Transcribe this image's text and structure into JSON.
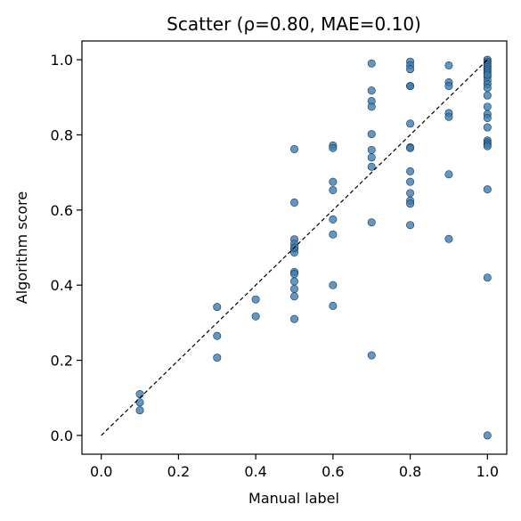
{
  "chart_data": {
    "type": "scatter",
    "title": "Scatter  (ρ=0.80,  MAE=0.10)",
    "xlabel": "Manual label",
    "ylabel": "Algorithm score",
    "xlim": [
      -0.05,
      1.05
    ],
    "ylim": [
      -0.05,
      1.05
    ],
    "xticks": [
      0.0,
      0.2,
      0.4,
      0.6,
      0.8,
      1.0
    ],
    "yticks": [
      0.0,
      0.2,
      0.4,
      0.6,
      0.8,
      1.0
    ],
    "xtick_labels": [
      "0.0",
      "0.2",
      "0.4",
      "0.6",
      "0.8",
      "1.0"
    ],
    "ytick_labels": [
      "0.0",
      "0.2",
      "0.4",
      "0.6",
      "0.8",
      "1.0"
    ],
    "grid": false,
    "reference_line": {
      "x": [
        0,
        1
      ],
      "y": [
        0,
        1
      ],
      "style": "dashed",
      "color": "#000000"
    },
    "point_color": "#3a7db3",
    "point_edge_color": "#1c3550",
    "series": [
      {
        "x": [
          0.1,
          0.1,
          0.1,
          0.3,
          0.3,
          0.3,
          0.4,
          0.4,
          0.5,
          0.5,
          0.5,
          0.5,
          0.5,
          0.5,
          0.5,
          0.5,
          0.5,
          0.5,
          0.5,
          0.5,
          0.5,
          0.6,
          0.6,
          0.6,
          0.6,
          0.6,
          0.6,
          0.6,
          0.6,
          0.7,
          0.7,
          0.7,
          0.7,
          0.7,
          0.7,
          0.7,
          0.7,
          0.7,
          0.7,
          0.8,
          0.8,
          0.8,
          0.8,
          0.8,
          0.8,
          0.8,
          0.8,
          0.8,
          0.8,
          0.8,
          0.8,
          0.8,
          0.8,
          0.9,
          0.9,
          0.9,
          0.9,
          0.9,
          0.9,
          0.9,
          1.0,
          1.0,
          1.0,
          1.0,
          1.0,
          1.0,
          1.0,
          1.0,
          1.0,
          1.0,
          1.0,
          1.0,
          1.0,
          1.0,
          1.0,
          1.0,
          1.0,
          1.0,
          1.0,
          1.0,
          1.0,
          1.0,
          1.0,
          1.0,
          1.0
        ],
        "y": [
          0.11,
          0.088,
          0.067,
          0.342,
          0.265,
          0.207,
          0.362,
          0.317,
          0.762,
          0.62,
          0.522,
          0.51,
          0.497,
          0.487,
          0.435,
          0.43,
          0.41,
          0.39,
          0.37,
          0.31,
          0.5,
          0.772,
          0.765,
          0.675,
          0.653,
          0.575,
          0.535,
          0.4,
          0.345,
          0.99,
          0.918,
          0.89,
          0.875,
          0.802,
          0.76,
          0.74,
          0.715,
          0.567,
          0.213,
          0.995,
          0.985,
          0.975,
          0.93,
          0.93,
          0.83,
          0.767,
          0.765,
          0.703,
          0.675,
          0.645,
          0.625,
          0.617,
          0.56,
          0.985,
          0.94,
          0.93,
          0.858,
          0.848,
          0.695,
          0.523,
          1.0,
          0.995,
          0.99,
          0.985,
          0.98,
          0.975,
          0.97,
          0.965,
          0.955,
          0.945,
          0.935,
          0.925,
          0.905,
          0.875,
          0.855,
          0.845,
          0.82,
          0.785,
          0.78,
          0.775,
          0.77,
          0.655,
          0.42,
          0.0,
          0.96
        ]
      }
    ]
  }
}
